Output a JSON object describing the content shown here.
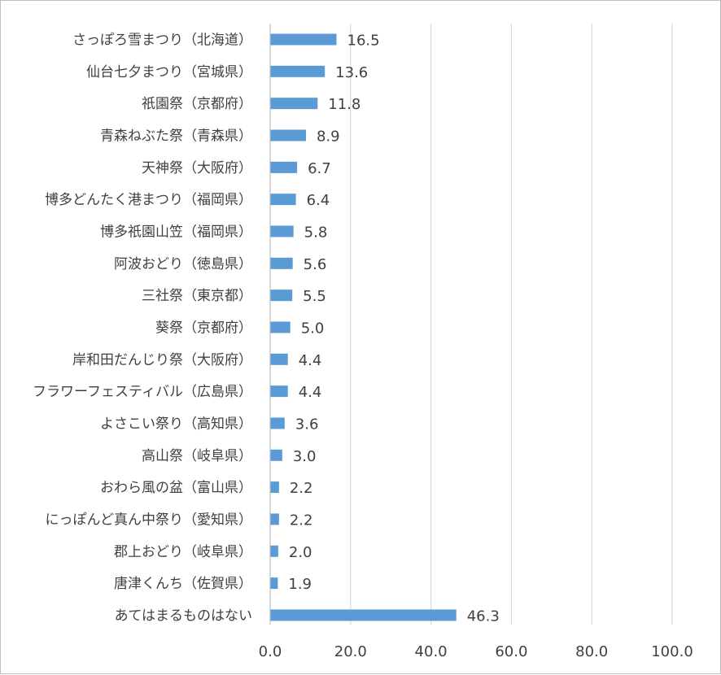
{
  "chart_data": {
    "type": "bar",
    "orientation": "horizontal",
    "categories": [
      "さっぽろ雪まつり（北海道）",
      "仙台七夕まつり（宮城県）",
      "祇園祭（京都府）",
      "青森ねぶた祭（青森県）",
      "天神祭（大阪府）",
      "博多どんたく港まつり（福岡県）",
      "博多祇園山笠（福岡県）",
      "阿波おどり（徳島県）",
      "三社祭（東京都）",
      "葵祭（京都府）",
      "岸和田だんじり祭（大阪府）",
      "フラワーフェスティバル（広島県）",
      "よさこい祭り（高知県）",
      "高山祭（岐阜県）",
      "おわら風の盆（富山県）",
      "にっぽんど真ん中祭り（愛知県）",
      "郡上おどり（岐阜県）",
      "唐津くんち（佐賀県）",
      "あてはまるものはない"
    ],
    "values": [
      16.5,
      13.6,
      11.8,
      8.9,
      6.7,
      6.4,
      5.8,
      5.6,
      5.5,
      5.0,
      4.4,
      4.4,
      3.6,
      3.0,
      2.2,
      2.2,
      2.0,
      1.9,
      46.3
    ],
    "value_labels": [
      "16.5",
      "13.6",
      "11.8",
      "8.9",
      "6.7",
      "6.4",
      "5.8",
      "5.6",
      "5.5",
      "5.0",
      "4.4",
      "4.4",
      "3.6",
      "3.0",
      "2.2",
      "2.2",
      "2.0",
      "1.9",
      "46.3"
    ],
    "xlim": [
      0,
      100
    ],
    "x_ticks": [
      0,
      20,
      40,
      60,
      80,
      100
    ],
    "x_tick_labels": [
      "0.0",
      "20.0",
      "40.0",
      "60.0",
      "80.0",
      "100.0"
    ],
    "grid": "vertical",
    "legend": "none",
    "bar_color": "#5b9bd5",
    "title": "",
    "xlabel": "",
    "ylabel": ""
  }
}
